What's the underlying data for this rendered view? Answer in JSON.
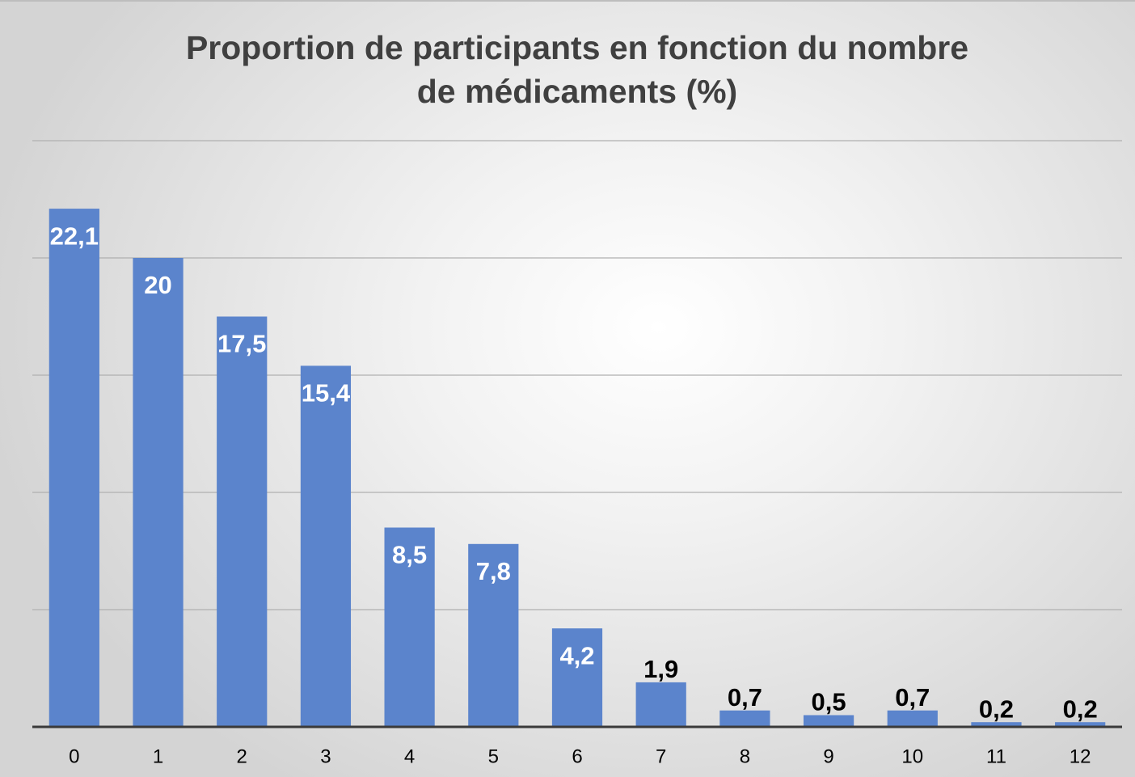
{
  "chart_data": {
    "type": "bar",
    "title": "Proportion de participants en fonction du nombre de médicaments (%)",
    "categories": [
      "0",
      "1",
      "2",
      "3",
      "4",
      "5",
      "6",
      "7",
      "8",
      "9",
      "10",
      "11",
      "12"
    ],
    "values": [
      22.1,
      20,
      17.5,
      15.4,
      8.5,
      7.8,
      4.2,
      1.9,
      0.7,
      0.5,
      0.7,
      0.2,
      0.2
    ],
    "value_labels": [
      "22,1",
      "20",
      "17,5",
      "15,4",
      "8,5",
      "7,8",
      "4,2",
      "1,9",
      "0,7",
      "0,5",
      "0,7",
      "0,2",
      "0,2"
    ],
    "color": "#5b84cc",
    "ylim": [
      0,
      25
    ],
    "yticks": [
      0,
      5,
      10,
      15,
      20,
      25
    ],
    "grid": true
  }
}
